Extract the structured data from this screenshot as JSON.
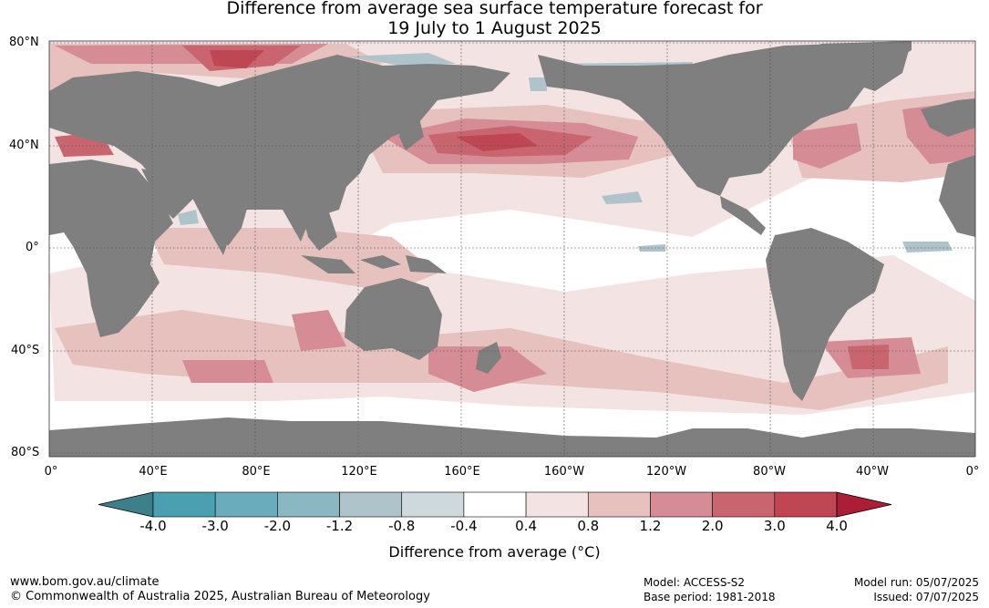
{
  "title": {
    "line1": "Difference from average sea surface temperature forecast for",
    "line2": "19 July to 1 August 2025"
  },
  "lat_labels": [
    "80°N",
    "40°N",
    "0°",
    "40°S",
    "80°S"
  ],
  "lon_labels": [
    "0°",
    "40°E",
    "80°E",
    "120°E",
    "160°E",
    "160°W",
    "120°W",
    "80°W",
    "40°W",
    "0°"
  ],
  "colorbar": {
    "title": "Difference from average (°C)",
    "tick_labels": [
      "-4.0",
      "-3.0",
      "-2.0",
      "-1.2",
      "-0.8",
      "-0.4",
      "0.4",
      "0.8",
      "1.2",
      "2.0",
      "3.0",
      "4.0"
    ],
    "colors": [
      "#3e7f8c",
      "#4aa0b1",
      "#6aacbb",
      "#8bb7c3",
      "#aec3ca",
      "#ced9db",
      "#ffffff",
      "#f3e4e3",
      "#e6c1be",
      "#d58c94",
      "#c8656f",
      "#bf4653",
      "#ab1e36"
    ]
  },
  "map_colors": {
    "land": "#7f7f7f",
    "ocean_neutral": "#ffffff",
    "warm_light": "#f3e4e3",
    "warm_mid": "#e6c1be",
    "warm_strong": "#d58c94",
    "warm_very": "#c8656f",
    "warm_extreme": "#bf4653",
    "cool_light": "#aec3ca"
  },
  "footer": {
    "website": "www.bom.gov.au/climate",
    "copyright": "© Commonwealth of Australia 2025, Australian Bureau of Meteorology",
    "model": "Model: ACCESS-S2",
    "base_period": "Base period: 1981-2018",
    "model_run": "Model run: 05/07/2025",
    "issued": "Issued: 07/07/2025"
  }
}
